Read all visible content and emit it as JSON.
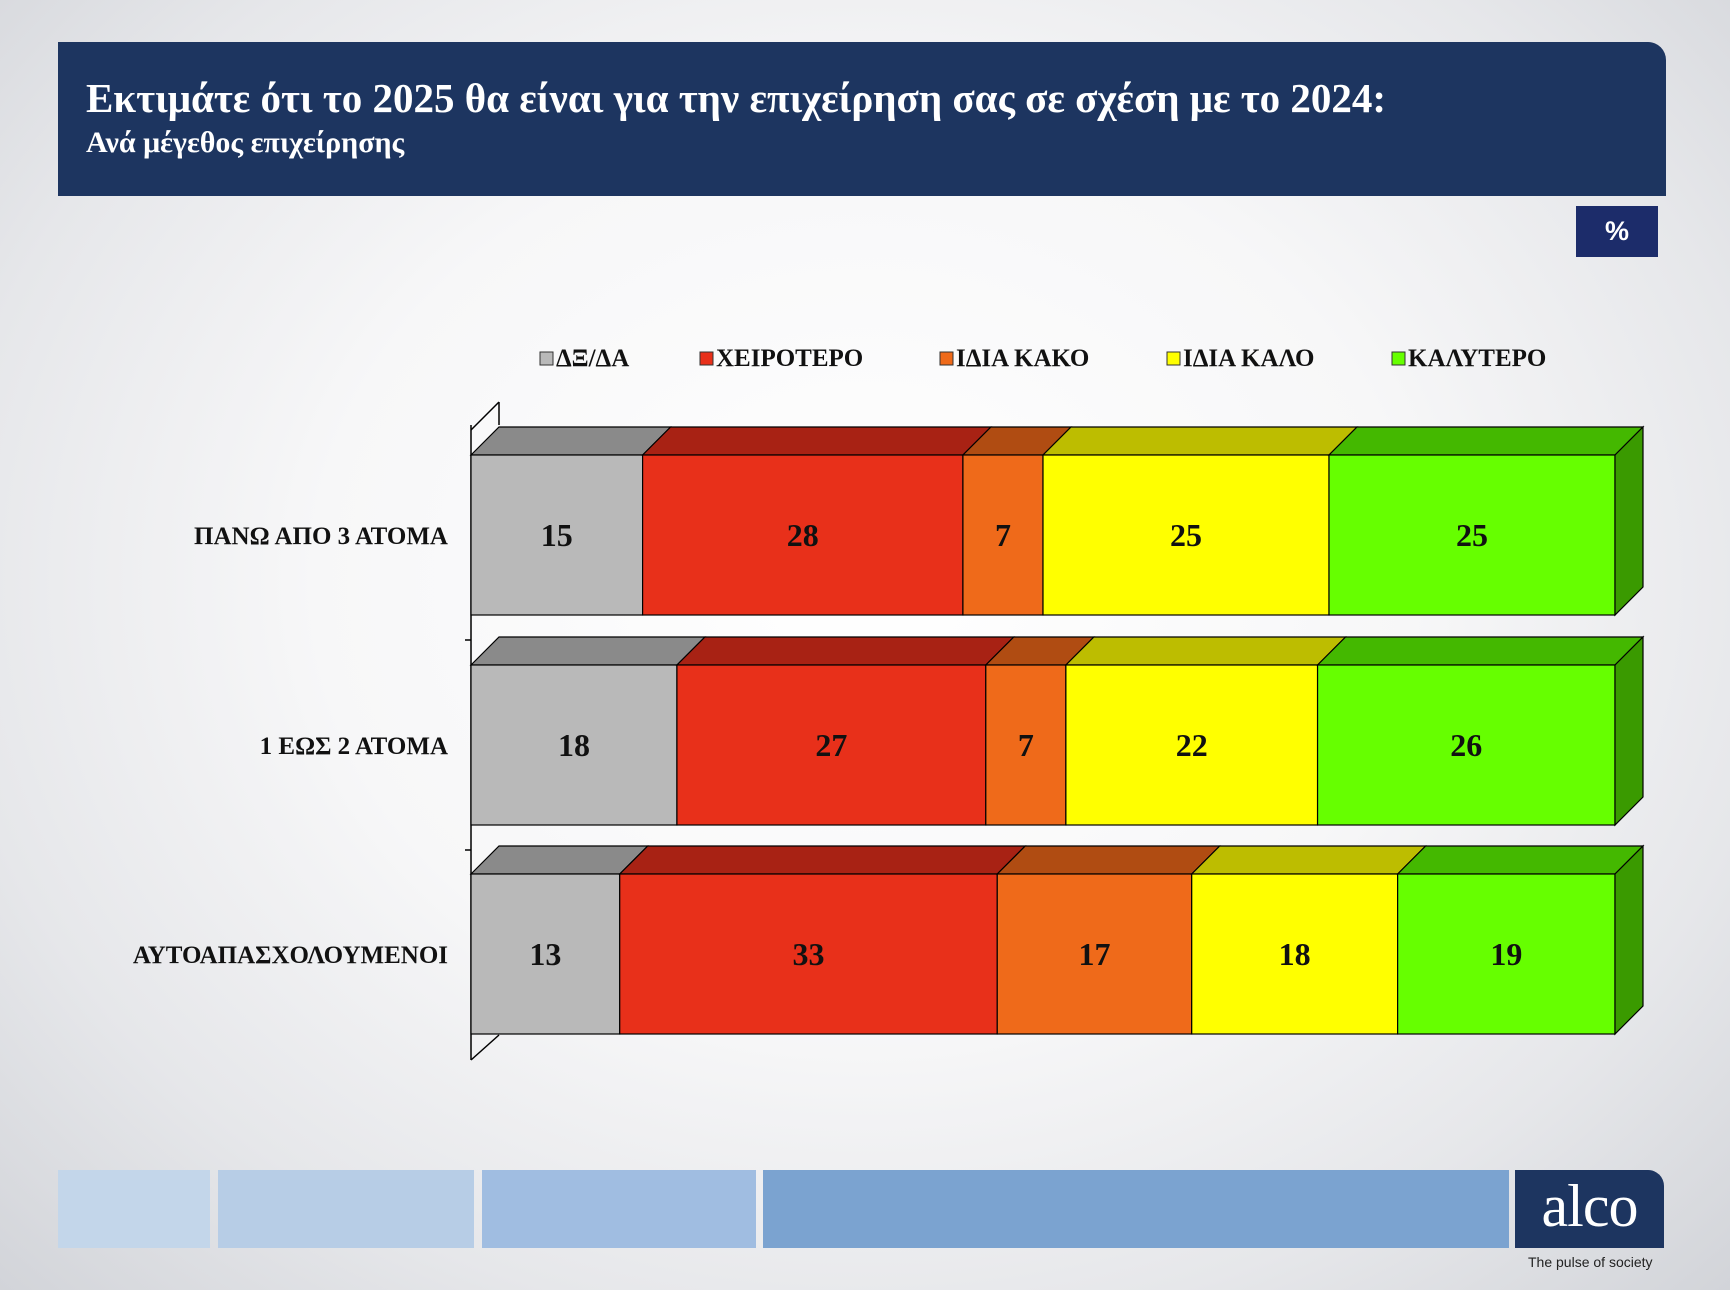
{
  "header": {
    "title": "Εκτιμάτε ότι το 2025 θα είναι για την επιχείρηση σας σε σχέση με το 2024:",
    "subtitle": "Ανά μέγεθος επιχείρησης"
  },
  "unit_badge": "%",
  "chart_data": {
    "type": "bar",
    "orientation": "horizontal",
    "stacked": true,
    "percent_stacked": true,
    "style": "3d",
    "legend_position": "top",
    "categories": [
      "ΠΑΝΩ ΑΠΟ 3 ΑΤΟΜΑ",
      "1 ΕΩΣ 2 ΑΤΟΜΑ",
      "ΑΥΤΟΑΠΑΣΧΟΛΟΥΜΕΝΟΙ"
    ],
    "series": [
      {
        "name": "ΔΞ/ΔΑ",
        "values": [
          15,
          18,
          13
        ],
        "color": "#b9b9b9",
        "top_color": "#8a8a8a",
        "side_color": "#6f6f6f"
      },
      {
        "name": "ΧΕΙΡΟΤΕΡΟ",
        "values": [
          28,
          27,
          33
        ],
        "color": "#e8301a",
        "top_color": "#a82214",
        "side_color": "#8a1a0f"
      },
      {
        "name": "ΙΔΙΑ ΚΑΚΟ",
        "values": [
          7,
          7,
          17
        ],
        "color": "#ef6a1a",
        "top_color": "#b04c12",
        "side_color": "#8f3c0d"
      },
      {
        "name": "ΙΔΙΑ ΚΑΛΟ",
        "values": [
          25,
          22,
          18
        ],
        "color": "#ffff00",
        "top_color": "#bdbd00",
        "side_color": "#9a9a00"
      },
      {
        "name": "ΚΑΛΥΤΕΡΟ",
        "values": [
          25,
          26,
          19
        ],
        "color": "#66ff00",
        "top_color": "#44b800",
        "side_color": "#3a9a00"
      }
    ],
    "gridlines": false
  },
  "footer": {
    "bar_colors": [
      "#c3d6ea",
      "#b7cde6",
      "#a0bde1",
      "#7ba3d0"
    ],
    "logo": "alco",
    "tagline": "The pulse of society"
  }
}
